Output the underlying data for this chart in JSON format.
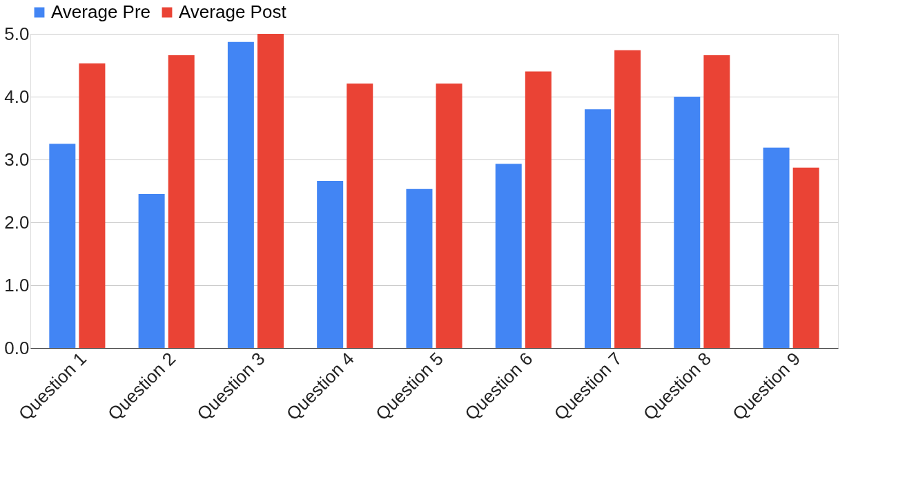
{
  "chart_data": {
    "type": "bar",
    "categories": [
      "Question 1",
      "Question 2",
      "Question 3",
      "Question 4",
      "Question 5",
      "Question 6",
      "Question 7",
      "Question 8",
      "Question 9"
    ],
    "series": [
      {
        "name": "Average Pre",
        "color": "#4285f4",
        "values": [
          3.25,
          2.45,
          4.87,
          2.66,
          2.53,
          2.93,
          3.8,
          4.0,
          3.19
        ]
      },
      {
        "name": "Average Post",
        "color": "#ea4335",
        "values": [
          4.53,
          4.66,
          5.0,
          4.21,
          4.21,
          4.4,
          4.74,
          4.66,
          2.87
        ]
      }
    ],
    "ylim": [
      0,
      5
    ],
    "yticks": [
      {
        "value": 0,
        "label": "0.0"
      },
      {
        "value": 1,
        "label": "1.0"
      },
      {
        "value": 2,
        "label": "2.0"
      },
      {
        "value": 3,
        "label": "3.0"
      },
      {
        "value": 4,
        "label": "4.0"
      },
      {
        "value": 5,
        "label": "5.0"
      }
    ],
    "grid": "y",
    "legend": "top"
  }
}
